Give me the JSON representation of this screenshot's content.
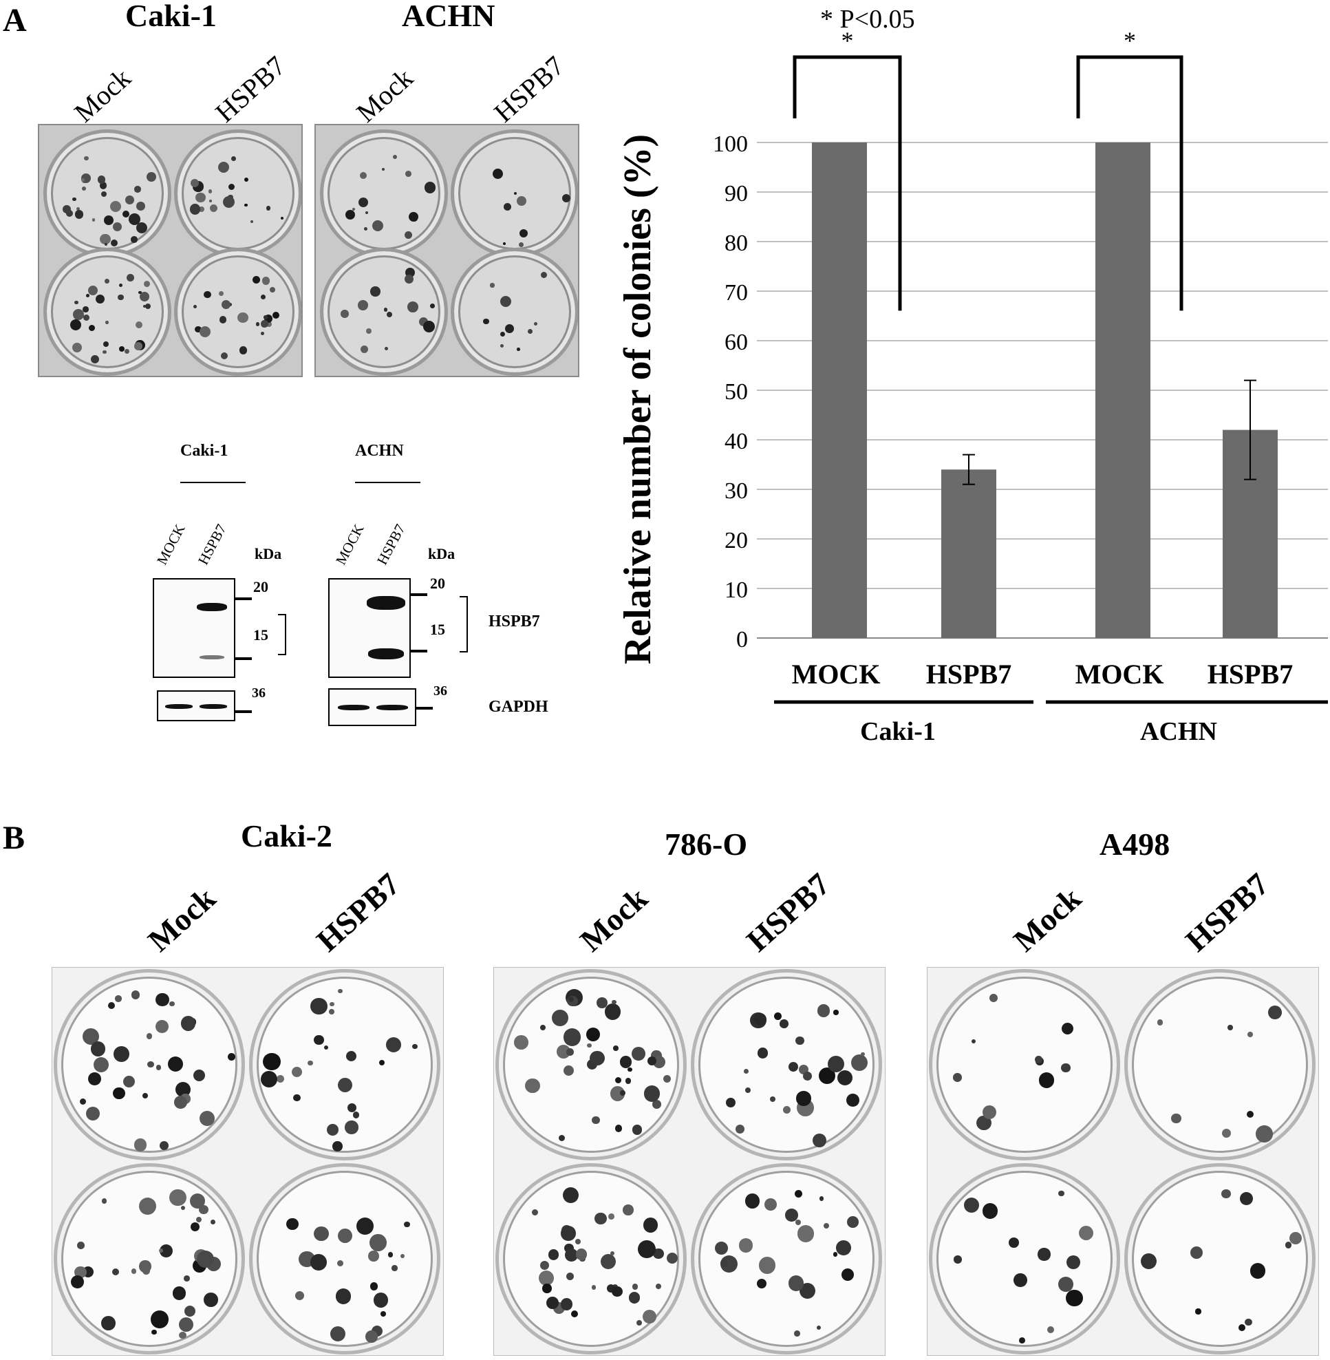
{
  "panel_a": {
    "letter": "A",
    "plates": [
      {
        "title": "Caki-1",
        "lanes": [
          "Mock",
          "HSPB7"
        ]
      },
      {
        "title": "ACHN",
        "lanes": [
          "Mock",
          "HSPB7"
        ]
      }
    ],
    "western": {
      "blots": [
        {
          "title": "Caki-1",
          "lanes": [
            "MOCK",
            "HSPB7"
          ],
          "kda_label": "kDa",
          "markers": [
            "20",
            "15"
          ],
          "gapdh_marker": "36"
        },
        {
          "title": "ACHN",
          "lanes": [
            "MOCK",
            "HSPB7"
          ],
          "kda_label": "kDa",
          "markers": [
            "20",
            "15"
          ],
          "gapdh_marker": "36"
        }
      ],
      "protein_labels": [
        "HSPB7",
        "GAPDH"
      ]
    }
  },
  "chart_data": {
    "type": "bar",
    "ylabel": "Relative number of colonies (%)",
    "annotation": "* P<0.05",
    "significance_marker": "*",
    "ylim": [
      0,
      100
    ],
    "yticks": [
      "0",
      "10",
      "20",
      "30",
      "40",
      "50",
      "60",
      "70",
      "80",
      "90",
      "100"
    ],
    "categories": [
      "MOCK",
      "HSPB7",
      "MOCK",
      "HSPB7"
    ],
    "groups": [
      "Caki-1",
      "ACHN"
    ],
    "values": [
      100,
      34,
      100,
      42
    ],
    "errors": [
      0,
      3,
      0,
      10
    ],
    "bar_color": "#6b6b6b",
    "grid": true
  },
  "panel_b": {
    "letter": "B",
    "plates": [
      {
        "title": "Caki-2",
        "lanes": [
          "Mock",
          "HSPB7"
        ]
      },
      {
        "title": "786-O",
        "lanes": [
          "Mock",
          "HSPB7"
        ]
      },
      {
        "title": "A498",
        "lanes": [
          "Mock",
          "HSPB7"
        ]
      }
    ]
  }
}
